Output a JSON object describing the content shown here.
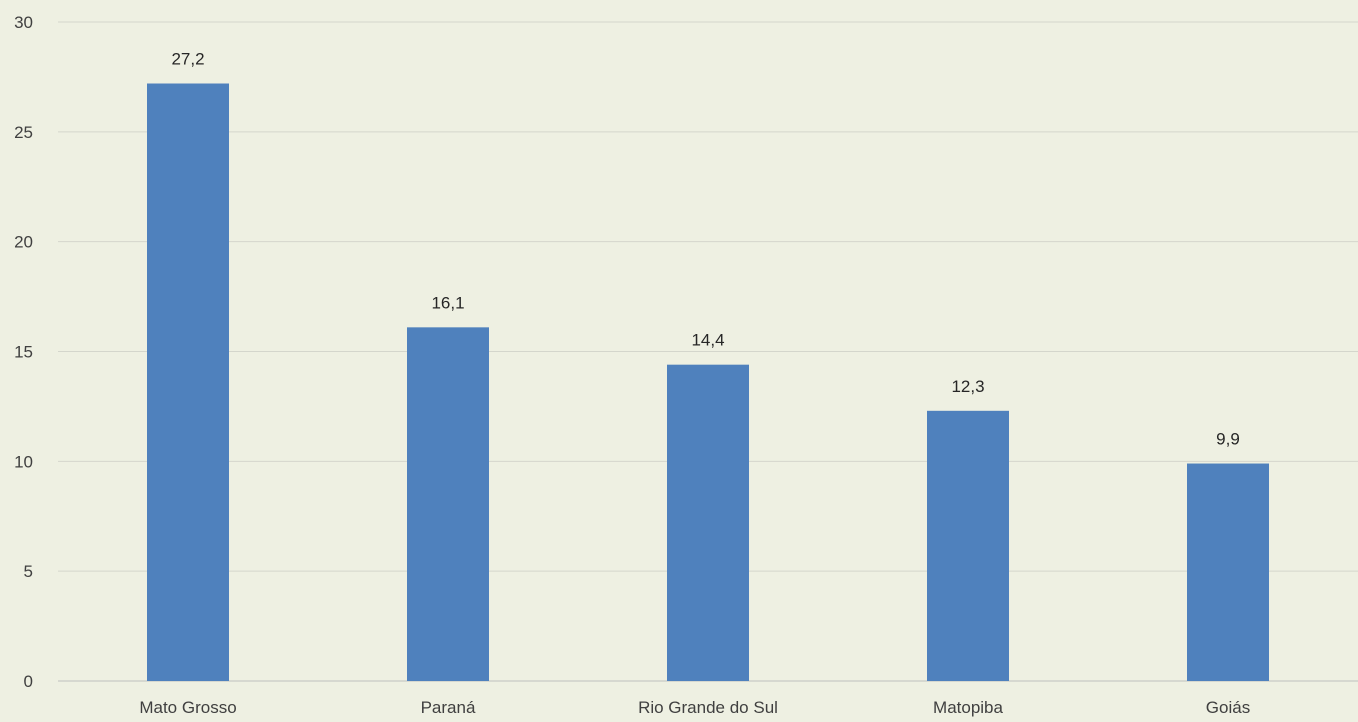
{
  "chart_data": {
    "type": "bar",
    "categories": [
      "Mato Grosso",
      "Paraná",
      "Rio Grande do Sul",
      "Matopiba",
      "Goiás"
    ],
    "values": [
      27.2,
      16.1,
      14.4,
      12.3,
      9.9
    ],
    "value_labels": [
      "27,2",
      "16,1",
      "14,4",
      "12,3",
      "9,9"
    ],
    "ylim": [
      0,
      30
    ],
    "yticks": [
      0,
      5,
      10,
      15,
      20,
      25,
      30
    ],
    "ytick_labels": [
      "0",
      "5",
      "10",
      "15",
      "20",
      "25",
      "30"
    ],
    "grid": true,
    "bar_color": "#4F81BD",
    "background_color": "#EEF0E2"
  }
}
